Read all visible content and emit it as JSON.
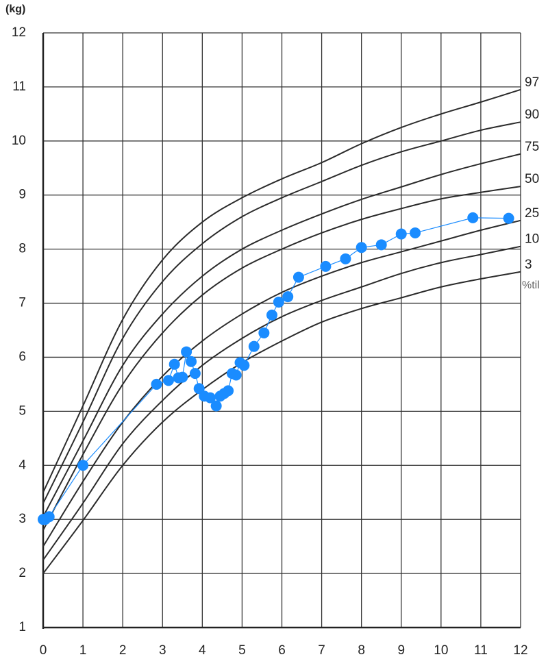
{
  "chart_data": {
    "type": "line",
    "y_unit": "(kg)",
    "unit_note": "%til",
    "xlim": [
      0,
      12
    ],
    "ylim": [
      1,
      12
    ],
    "xticks": [
      0,
      1,
      2,
      3,
      4,
      5,
      6,
      7,
      8,
      9,
      10,
      11,
      12
    ],
    "yticks": [
      1,
      2,
      3,
      4,
      5,
      6,
      7,
      8,
      9,
      10,
      11,
      12
    ],
    "grid": true,
    "x": [
      0,
      1,
      2,
      3,
      4,
      5,
      6,
      7,
      8,
      9,
      10,
      11,
      12
    ],
    "series": [
      {
        "name": "97",
        "color": "#2b2b2b",
        "values": [
          3.5,
          5.1,
          6.7,
          7.8,
          8.5,
          8.95,
          9.3,
          9.6,
          9.95,
          10.25,
          10.5,
          10.72,
          10.95
        ]
      },
      {
        "name": "90",
        "color": "#2b2b2b",
        "values": [
          3.3,
          4.8,
          6.35,
          7.4,
          8.1,
          8.6,
          8.95,
          9.25,
          9.55,
          9.8,
          10.0,
          10.2,
          10.35
        ]
      },
      {
        "name": "75",
        "color": "#2b2b2b",
        "values": [
          3.05,
          4.45,
          5.85,
          6.8,
          7.5,
          8.0,
          8.35,
          8.65,
          8.92,
          9.15,
          9.38,
          9.58,
          9.76
        ]
      },
      {
        "name": "50",
        "color": "#2b2b2b",
        "values": [
          2.8,
          4.2,
          5.5,
          6.45,
          7.15,
          7.65,
          8.0,
          8.3,
          8.55,
          8.75,
          8.93,
          9.05,
          9.16
        ]
      },
      {
        "name": "25",
        "color": "#2b2b2b",
        "values": [
          2.5,
          3.7,
          4.8,
          5.65,
          6.3,
          6.8,
          7.2,
          7.5,
          7.75,
          7.95,
          8.15,
          8.35,
          8.53
        ]
      },
      {
        "name": "10",
        "color": "#2b2b2b",
        "values": [
          2.25,
          3.3,
          4.4,
          5.2,
          5.85,
          6.35,
          6.75,
          7.05,
          7.3,
          7.55,
          7.75,
          7.9,
          8.05
        ]
      },
      {
        "name": "3",
        "color": "#2b2b2b",
        "values": [
          2.0,
          2.98,
          4.0,
          4.8,
          5.4,
          5.9,
          6.3,
          6.65,
          6.9,
          7.1,
          7.3,
          7.45,
          7.58
        ]
      }
    ],
    "measurements": {
      "color": "#1a8cff",
      "x": [
        0,
        0.05,
        0.15,
        1,
        2.85,
        3.15,
        3.3,
        3.4,
        3.5,
        3.6,
        3.72,
        3.82,
        3.92,
        4.05,
        4.2,
        4.35,
        4.45,
        4.55,
        4.65,
        4.75,
        4.85,
        4.95,
        5.05,
        5.3,
        5.55,
        5.75,
        5.92,
        6.15,
        6.42,
        7.1,
        7.6,
        8.0,
        8.5,
        9.0,
        9.35,
        10.8,
        11.7
      ],
      "values": [
        3.0,
        3.0,
        3.05,
        4.0,
        5.5,
        5.57,
        5.87,
        5.62,
        5.63,
        6.1,
        5.92,
        5.7,
        5.42,
        5.28,
        5.25,
        5.1,
        5.28,
        5.33,
        5.38,
        5.7,
        5.67,
        5.9,
        5.85,
        6.2,
        6.45,
        6.78,
        7.02,
        7.12,
        7.48,
        7.68,
        7.82,
        8.03,
        8.08,
        8.28,
        8.3,
        8.58,
        8.57
      ]
    }
  }
}
